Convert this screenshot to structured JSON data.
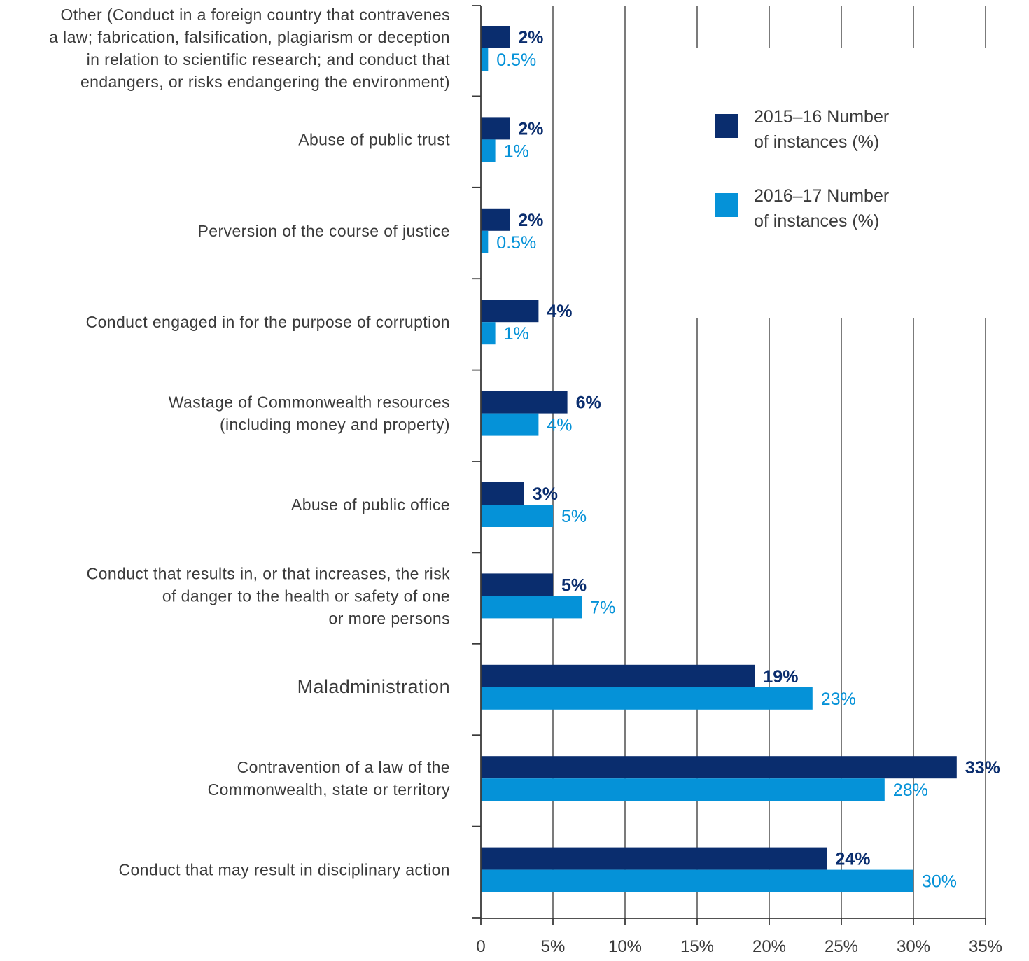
{
  "chart_data": {
    "type": "bar",
    "orientation": "horizontal",
    "title": "",
    "xlabel": "",
    "ylabel": "",
    "xlim": [
      0,
      35
    ],
    "ticks": [
      0,
      5,
      10,
      15,
      20,
      25,
      30,
      35
    ],
    "tick_labels": [
      "0",
      "5%",
      "10%",
      "15%",
      "20%",
      "25%",
      "30%",
      "35%"
    ],
    "grid": true,
    "legend_position": "top-right",
    "categories": [
      [
        "Other (Conduct in a foreign country that contravenes",
        "a law; fabrication, falsification, plagiarism or deception",
        "in relation to scientific research; and conduct that",
        "endangers, or risks endangering the environment)"
      ],
      [
        "Abuse of public trust"
      ],
      [
        "Perversion of the course of justice"
      ],
      [
        "Conduct engaged in for the purpose of corruption"
      ],
      [
        "Wastage of Commonwealth resources",
        "(including money and property)"
      ],
      [
        "Abuse of public office"
      ],
      [
        "Conduct that results in, or that increases, the risk",
        "of danger to the health or safety of one",
        "or more persons"
      ],
      [
        "Maladministration"
      ],
      [
        "Contravention of a law of the",
        "Commonwealth, state or territory"
      ],
      [
        "Conduct that may result in disciplinary action"
      ]
    ],
    "series": [
      {
        "name": [
          "2015–16 Number",
          "of instances (%)"
        ],
        "color": "#0a2d6e",
        "values": [
          2,
          2,
          2,
          4,
          6,
          3,
          5,
          19,
          33,
          24
        ],
        "labels": [
          "2%",
          "2%",
          "2%",
          "4%",
          "6%",
          "3%",
          "5%",
          "19%",
          "33%",
          "24%"
        ]
      },
      {
        "name": [
          "2016–17 Number",
          "of instances (%)"
        ],
        "color": "#0592d8",
        "values": [
          0.5,
          1,
          0.5,
          1,
          4,
          5,
          7,
          23,
          28,
          30
        ],
        "labels": [
          "0.5%",
          "1%",
          "0.5%",
          "1%",
          "4%",
          "5%",
          "7%",
          "23%",
          "28%",
          "30%"
        ]
      }
    ]
  }
}
